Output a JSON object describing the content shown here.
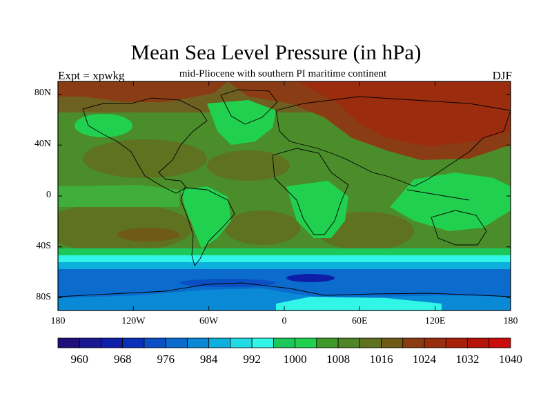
{
  "title": "Mean Sea Level Pressure (in hPa)",
  "left_label": "Expt = xpwkg",
  "subtitle": "mid-Pliocene with southern PI maritime continent",
  "right_label": "DJF",
  "map": {
    "projection": "cylindrical equidistant",
    "lon_range": [
      -180,
      180
    ],
    "lat_range": [
      -90,
      90
    ],
    "y_ticks": [
      "80N",
      "40N",
      "0",
      "40S",
      "80S"
    ],
    "y_tick_values": [
      80,
      40,
      0,
      -40,
      -80
    ],
    "x_ticks": [
      "180",
      "120W",
      "60W",
      "0",
      "60E",
      "120E",
      "180"
    ],
    "x_tick_values": [
      -180,
      -120,
      -60,
      0,
      60,
      120,
      180
    ]
  },
  "colorbar": {
    "labels": [
      "960",
      "968",
      "976",
      "984",
      "992",
      "1000",
      "1008",
      "1016",
      "1024",
      "1032",
      "1040"
    ],
    "colors": [
      "#1e0f7a",
      "#1a1a90",
      "#0f1ea8",
      "#0a32b8",
      "#0a4fc4",
      "#0b6ccd",
      "#0a8ad6",
      "#0db0dc",
      "#22dbe3",
      "#31f5e6",
      "#1dc85a",
      "#22d050",
      "#3f9a2a",
      "#4f8526",
      "#5e7220",
      "#6f5a18",
      "#8a3c12",
      "#9a2d0e",
      "#a8200a",
      "#b51208",
      "#cc0c0c"
    ]
  }
}
